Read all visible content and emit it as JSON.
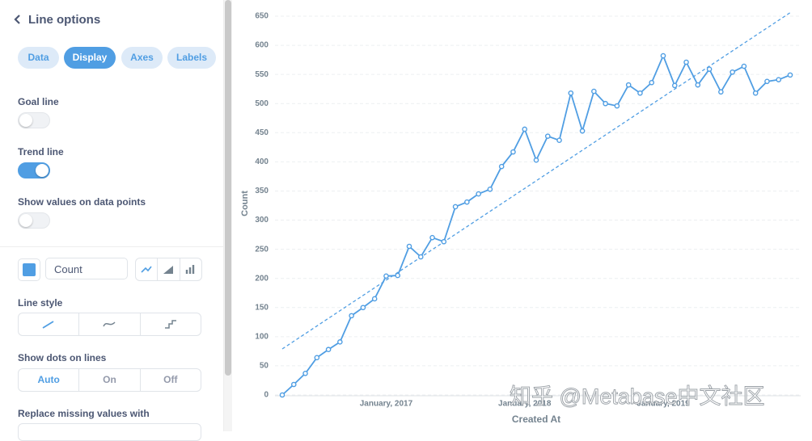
{
  "panel": {
    "title": "Line options",
    "tabs": [
      {
        "label": "Data",
        "active": false
      },
      {
        "label": "Display",
        "active": true
      },
      {
        "label": "Axes",
        "active": false
      },
      {
        "label": "Labels",
        "active": false
      }
    ],
    "toggles": [
      {
        "label": "Goal line",
        "on": false
      },
      {
        "label": "Trend line",
        "on": true
      },
      {
        "label": "Show values on data points",
        "on": false
      }
    ],
    "line_style_label": "Line style",
    "dots_label": "Show dots on lines",
    "dots_options": [
      {
        "label": "Auto",
        "active": true
      },
      {
        "label": "On",
        "active": false
      },
      {
        "label": "Off",
        "active": false
      }
    ],
    "missing_label": "Replace missing values with"
  },
  "chart_data": {
    "type": "line",
    "xlabel": "Created At",
    "ylabel": "Count",
    "categories": [
      null,
      null,
      null,
      null,
      null,
      null,
      null,
      null,
      null,
      "January, 2017",
      null,
      null,
      null,
      null,
      null,
      null,
      null,
      null,
      null,
      null,
      null,
      "January, 2018",
      null,
      null,
      null,
      null,
      null,
      null,
      null,
      null,
      null,
      null,
      null,
      "January, 2019",
      null,
      null,
      null,
      null,
      null,
      null,
      null,
      null,
      null,
      null,
      null
    ],
    "series": [
      {
        "name": "Count",
        "color": "#509ee3",
        "values": [
          0,
          18,
          37,
          64,
          78,
          91,
          136,
          150,
          165,
          204,
          205,
          255,
          237,
          270,
          263,
          323,
          331,
          345,
          353,
          392,
          417,
          456,
          403,
          444,
          437,
          518,
          453,
          521,
          500,
          496,
          532,
          518,
          536,
          582,
          531,
          571,
          532,
          559,
          520,
          554,
          564,
          518,
          538,
          541,
          549
        ]
      }
    ],
    "trend_values": [
      79,
      656
    ],
    "ylim": [
      0,
      650
    ],
    "yticks": [
      0,
      50,
      100,
      150,
      200,
      250,
      300,
      350,
      400,
      450,
      500,
      550,
      600,
      650
    ],
    "grid": true,
    "watermark": "知乎 @Metabase中文社区"
  }
}
